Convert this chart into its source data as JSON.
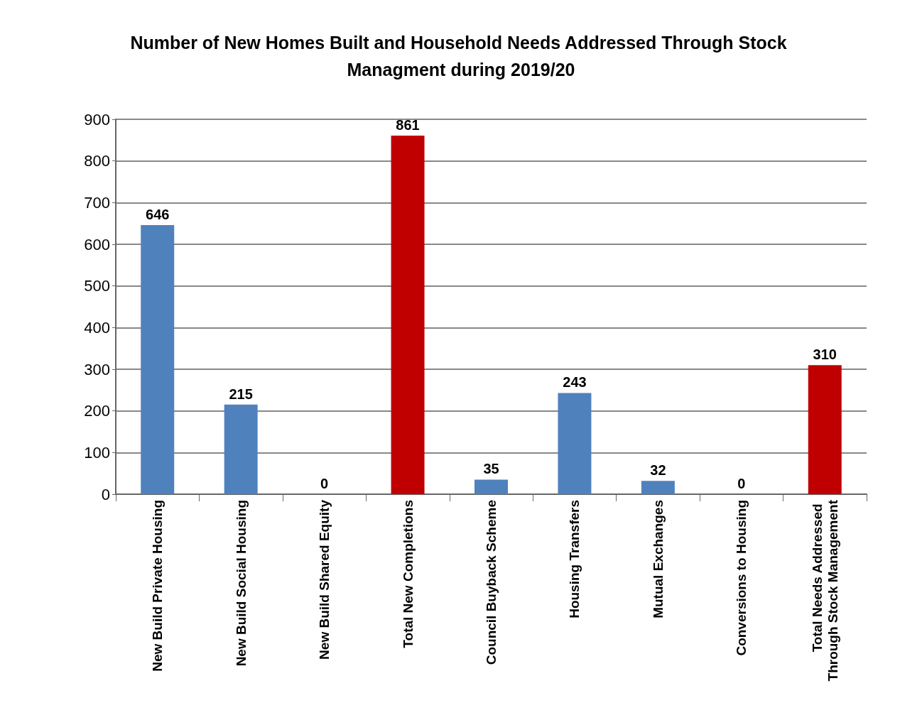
{
  "chart_data": {
    "type": "bar",
    "title": "Number of New Homes Built and Household Needs Addressed Through Stock Managment during 2019/20",
    "categories": [
      "New Build Private Housing",
      "New Build Social Housing",
      "New Build Shared Equity",
      "Total New Completions",
      "Council Buyback Scheme",
      "Housing Transfers",
      "Mutual Exchanges",
      "Conversions to Housing",
      "Total Needs Addressed Through Stock Management"
    ],
    "values": [
      646,
      215,
      0,
      861,
      35,
      243,
      32,
      0,
      310
    ],
    "colors": [
      "#4f81bd",
      "#4f81bd",
      "#4f81bd",
      "#c00000",
      "#4f81bd",
      "#4f81bd",
      "#4f81bd",
      "#4f81bd",
      "#c00000"
    ],
    "ylim": [
      0,
      900
    ],
    "yticks": [
      0,
      100,
      200,
      300,
      400,
      500,
      600,
      700,
      800,
      900
    ],
    "grid": "y",
    "data_labels": true
  }
}
